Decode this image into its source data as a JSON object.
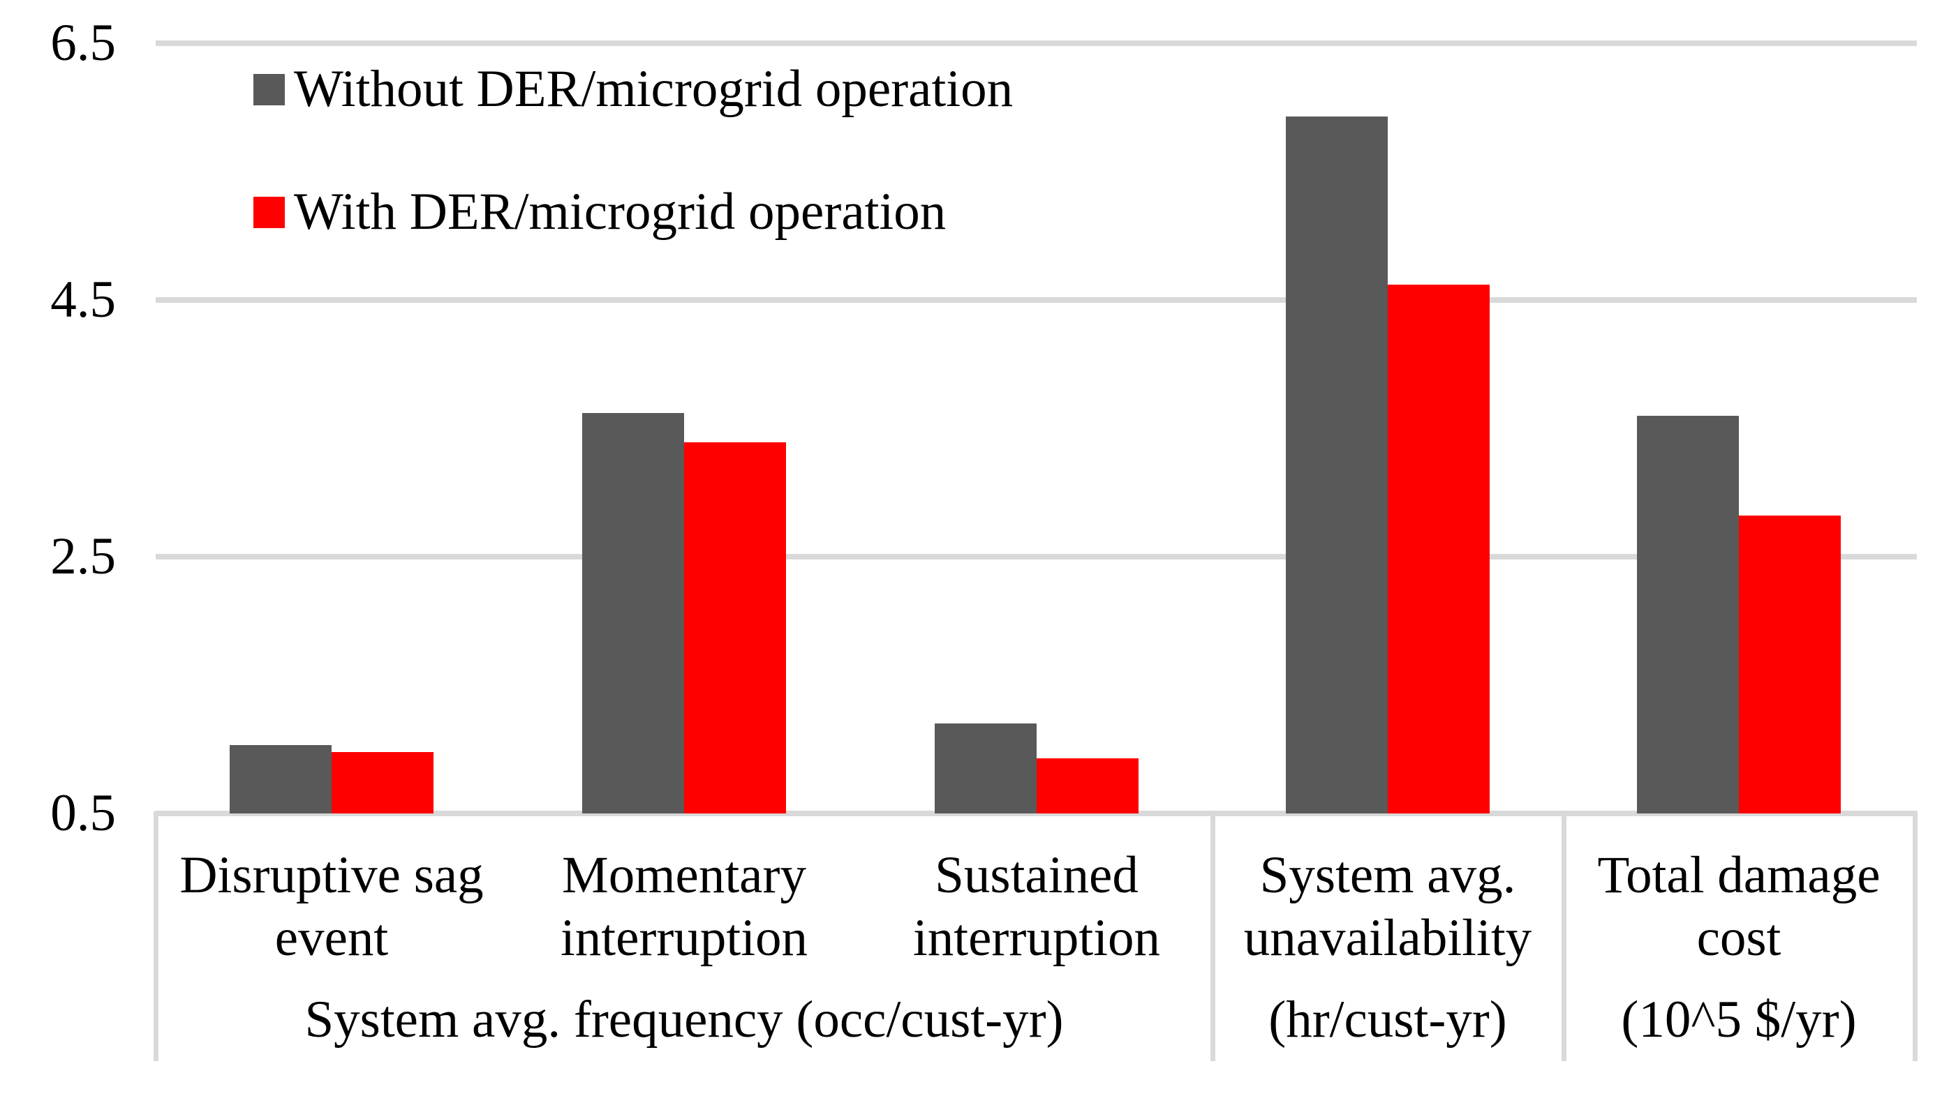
{
  "chart_data": {
    "type": "bar",
    "title": "",
    "categories": [
      "Disruptive sag event",
      "Momentary interruption",
      "Sustained interruption",
      "System avg. unavailability",
      "Total damage cost"
    ],
    "category_label_lines": [
      [
        "Disruptive sag",
        "event"
      ],
      [
        "Momentary",
        "interruption"
      ],
      [
        "Sustained",
        "interruption"
      ],
      [
        "System avg.",
        "unavailability"
      ],
      [
        "Total damage",
        "cost"
      ]
    ],
    "group_unit_labels": [
      {
        "label": "System avg. frequency (occ/cust-yr)",
        "category_span": [
          0,
          2
        ]
      },
      {
        "label": "(hr/cust-yr)",
        "category_span": [
          3,
          3
        ]
      },
      {
        "label": "(10^5 $/yr)",
        "category_span": [
          4,
          4
        ]
      }
    ],
    "series": [
      {
        "name": "Without DER/microgrid operation",
        "color": "#595959",
        "values": [
          1.03,
          3.62,
          1.2,
          5.93,
          3.6
        ]
      },
      {
        "name": "With DER/microgrid operation",
        "color": "#FF0000",
        "values": [
          0.98,
          3.39,
          0.93,
          4.62,
          2.82
        ]
      }
    ],
    "y_axis": {
      "min": 0.5,
      "max": 6.5,
      "tick_labels": [
        "0.5",
        "2.5",
        "4.5",
        "6.5"
      ],
      "tick_values": [
        0.5,
        2.5,
        4.5,
        6.5
      ],
      "gridline_values": [
        2.5,
        4.5,
        6.5
      ]
    },
    "legend_position": "top-left-inside",
    "grid_on": true,
    "colors": {
      "gridline": "#D9D9D9",
      "axis_line": "#D9D9D9",
      "table_border": "#D9D9D9",
      "text": "#000000",
      "background": "#FFFFFF"
    }
  }
}
